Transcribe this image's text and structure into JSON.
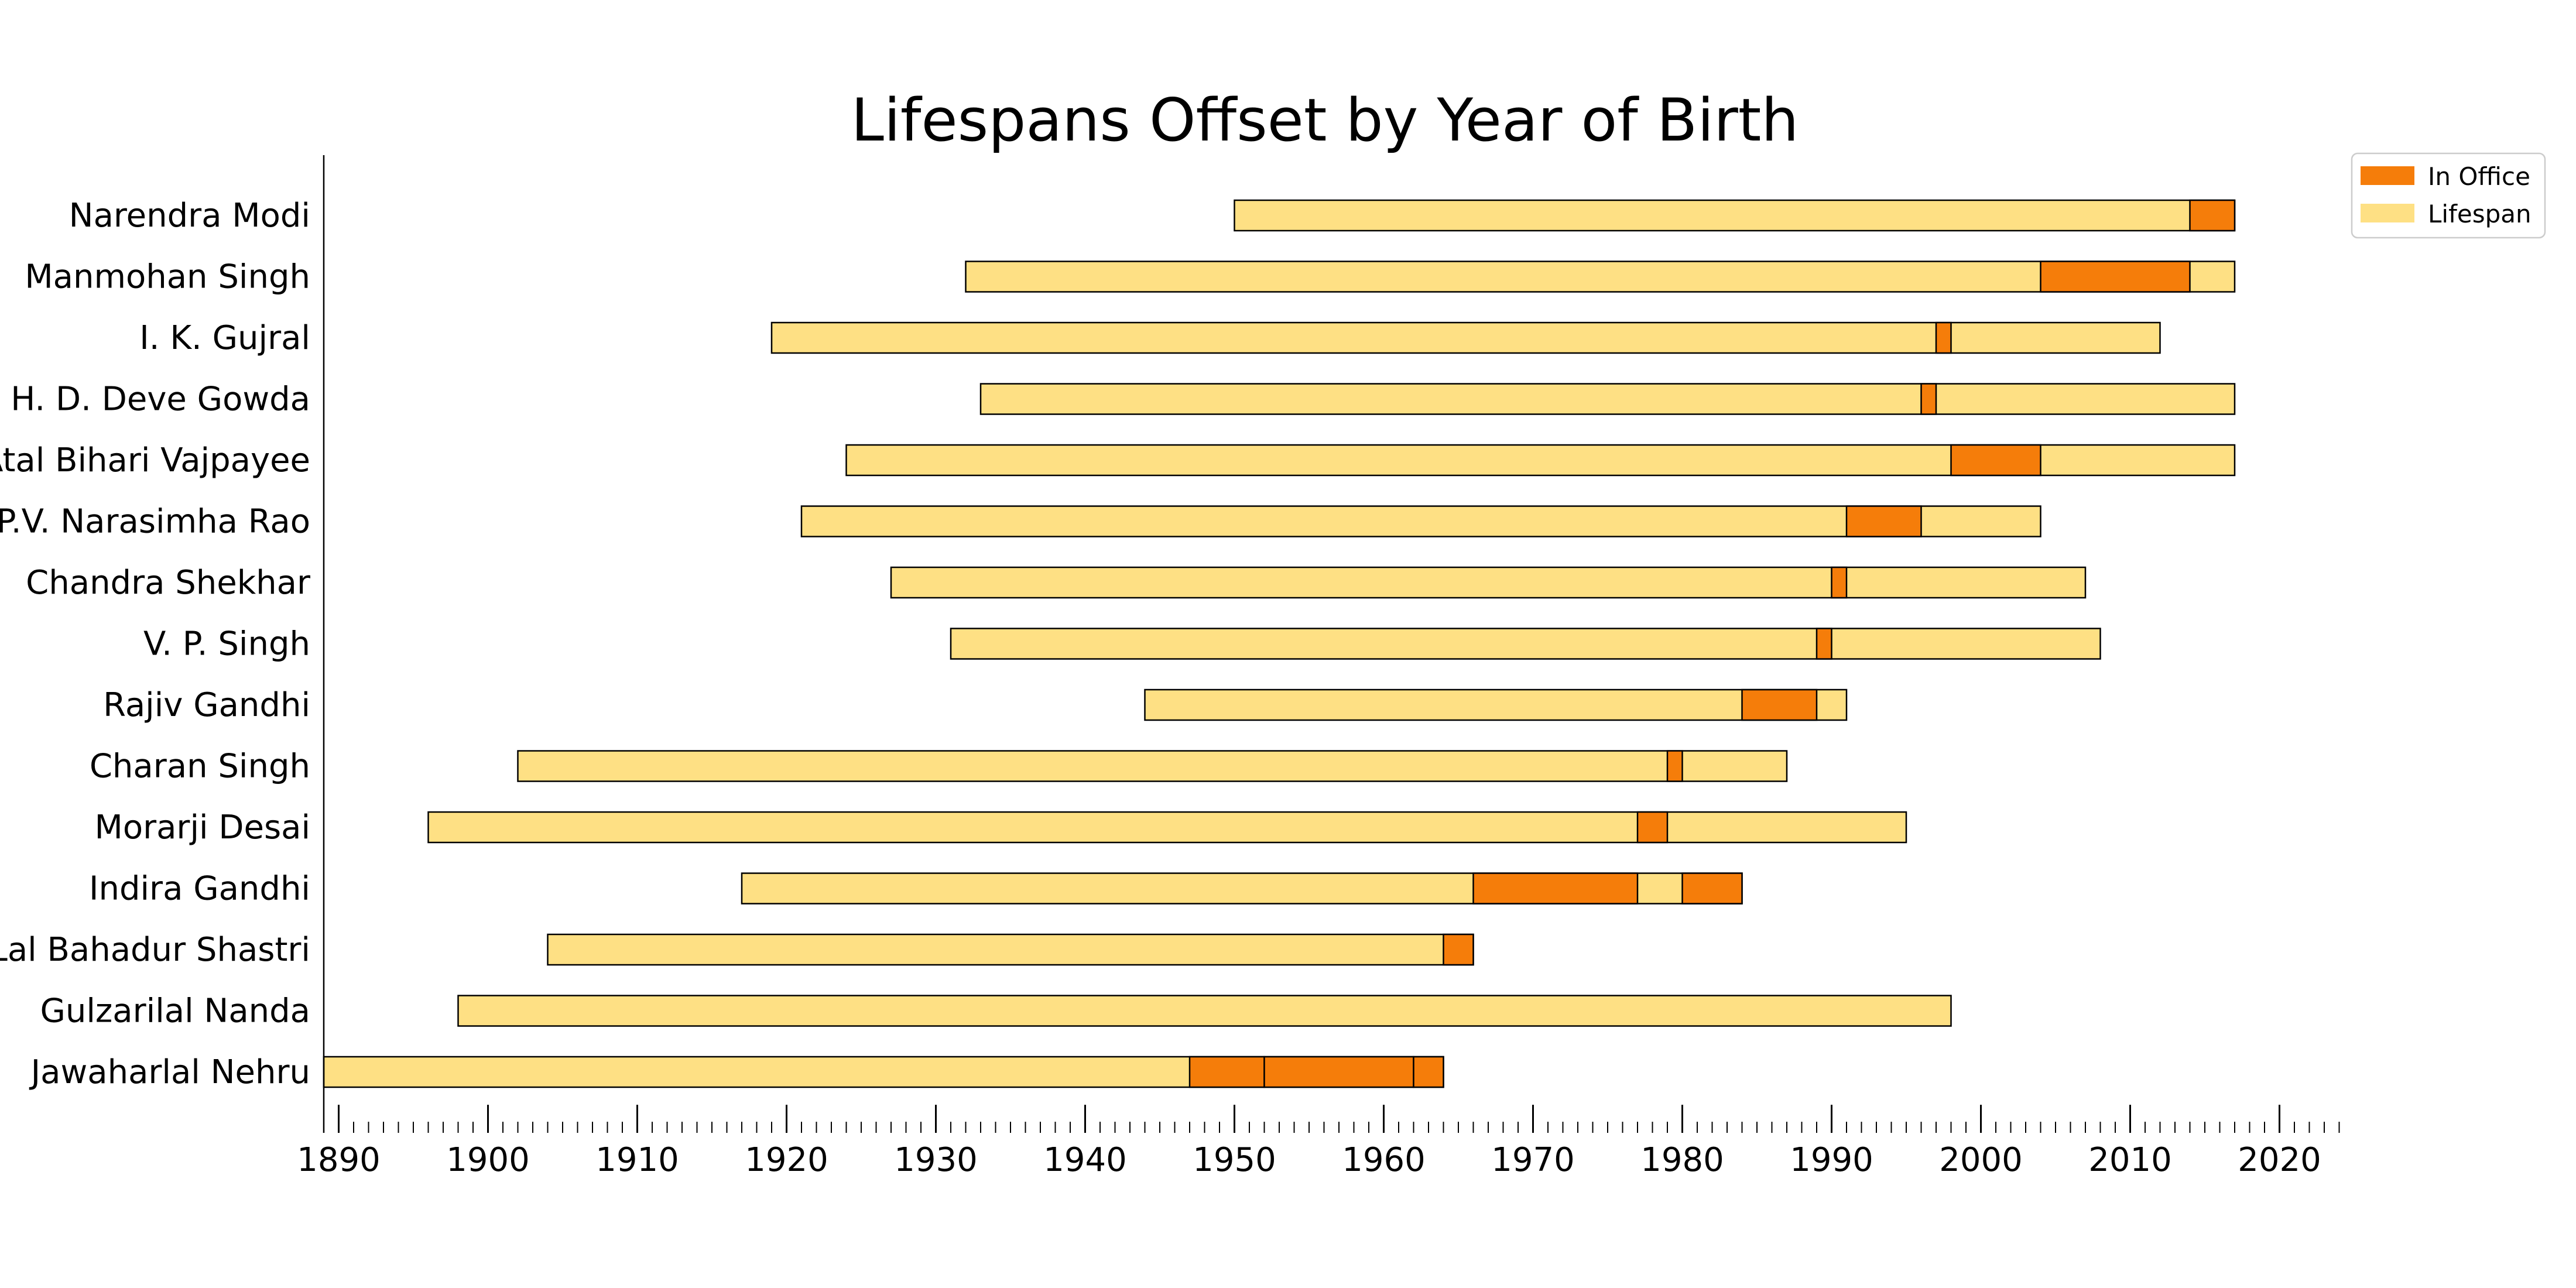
{
  "chart_data": {
    "type": "bar",
    "orientation": "horizontal",
    "title": "Lifespans Offset by Year of Birth",
    "xlabel": "",
    "ylabel": "",
    "xlim": [
      1889,
      2024
    ],
    "x_ticks": [
      1890,
      1900,
      1910,
      1920,
      1930,
      1940,
      1950,
      1960,
      1970,
      1980,
      1990,
      2000,
      2010,
      2020
    ],
    "minor_tick_step": 1,
    "grid": false,
    "legend": {
      "placement": "top-right",
      "entries": [
        "In Office",
        "Lifespan"
      ]
    },
    "colors": {
      "lifespan": "#fee084",
      "in_office": "#f57d0a",
      "edge": "#000000"
    },
    "categories": [
      "Narendra Modi",
      "Manmohan Singh",
      "I. K. Gujral",
      "H. D. Deve Gowda",
      "Atal Bihari Vajpayee",
      "P.V. Narasimha Rao",
      "Chandra Shekhar",
      "V. P. Singh",
      "Rajiv Gandhi",
      "Charan Singh",
      "Morarji Desai",
      "Indira Gandhi",
      "Lal Bahadur Shastri",
      "Gulzarilal Nanda",
      "Jawaharlal Nehru"
    ],
    "series": [
      {
        "name": "Lifespan",
        "values": [
          [
            1950,
            2017
          ],
          [
            1932,
            2017
          ],
          [
            1919,
            2012
          ],
          [
            1933,
            2017
          ],
          [
            1924,
            2017
          ],
          [
            1921,
            2004
          ],
          [
            1927,
            2007
          ],
          [
            1931,
            2008
          ],
          [
            1944,
            1991
          ],
          [
            1902,
            1987
          ],
          [
            1896,
            1995
          ],
          [
            1917,
            1984
          ],
          [
            1904,
            1966
          ],
          [
            1898,
            1998
          ],
          [
            1889,
            1964
          ]
        ]
      },
      {
        "name": "In Office",
        "values": [
          [
            [
              2014,
              2017
            ]
          ],
          [
            [
              2004,
              2014
            ]
          ],
          [
            [
              1997,
              1998
            ]
          ],
          [
            [
              1996,
              1997
            ]
          ],
          [
            [
              1996,
              1996
            ],
            [
              1998,
              2004
            ]
          ],
          [
            [
              1991,
              1996
            ]
          ],
          [
            [
              1990,
              1991
            ]
          ],
          [
            [
              1989,
              1990
            ]
          ],
          [
            [
              1984,
              1989
            ]
          ],
          [
            [
              1979,
              1980
            ]
          ],
          [
            [
              1977,
              1979
            ]
          ],
          [
            [
              1966,
              1977
            ],
            [
              1980,
              1984
            ]
          ],
          [
            [
              1964,
              1966
            ]
          ],
          [
            [
              1964,
              1964
            ],
            [
              1966,
              1966
            ]
          ],
          [
            [
              1947,
              1952
            ],
            [
              1952,
              1962
            ],
            [
              1962,
              1964
            ]
          ]
        ]
      }
    ]
  }
}
